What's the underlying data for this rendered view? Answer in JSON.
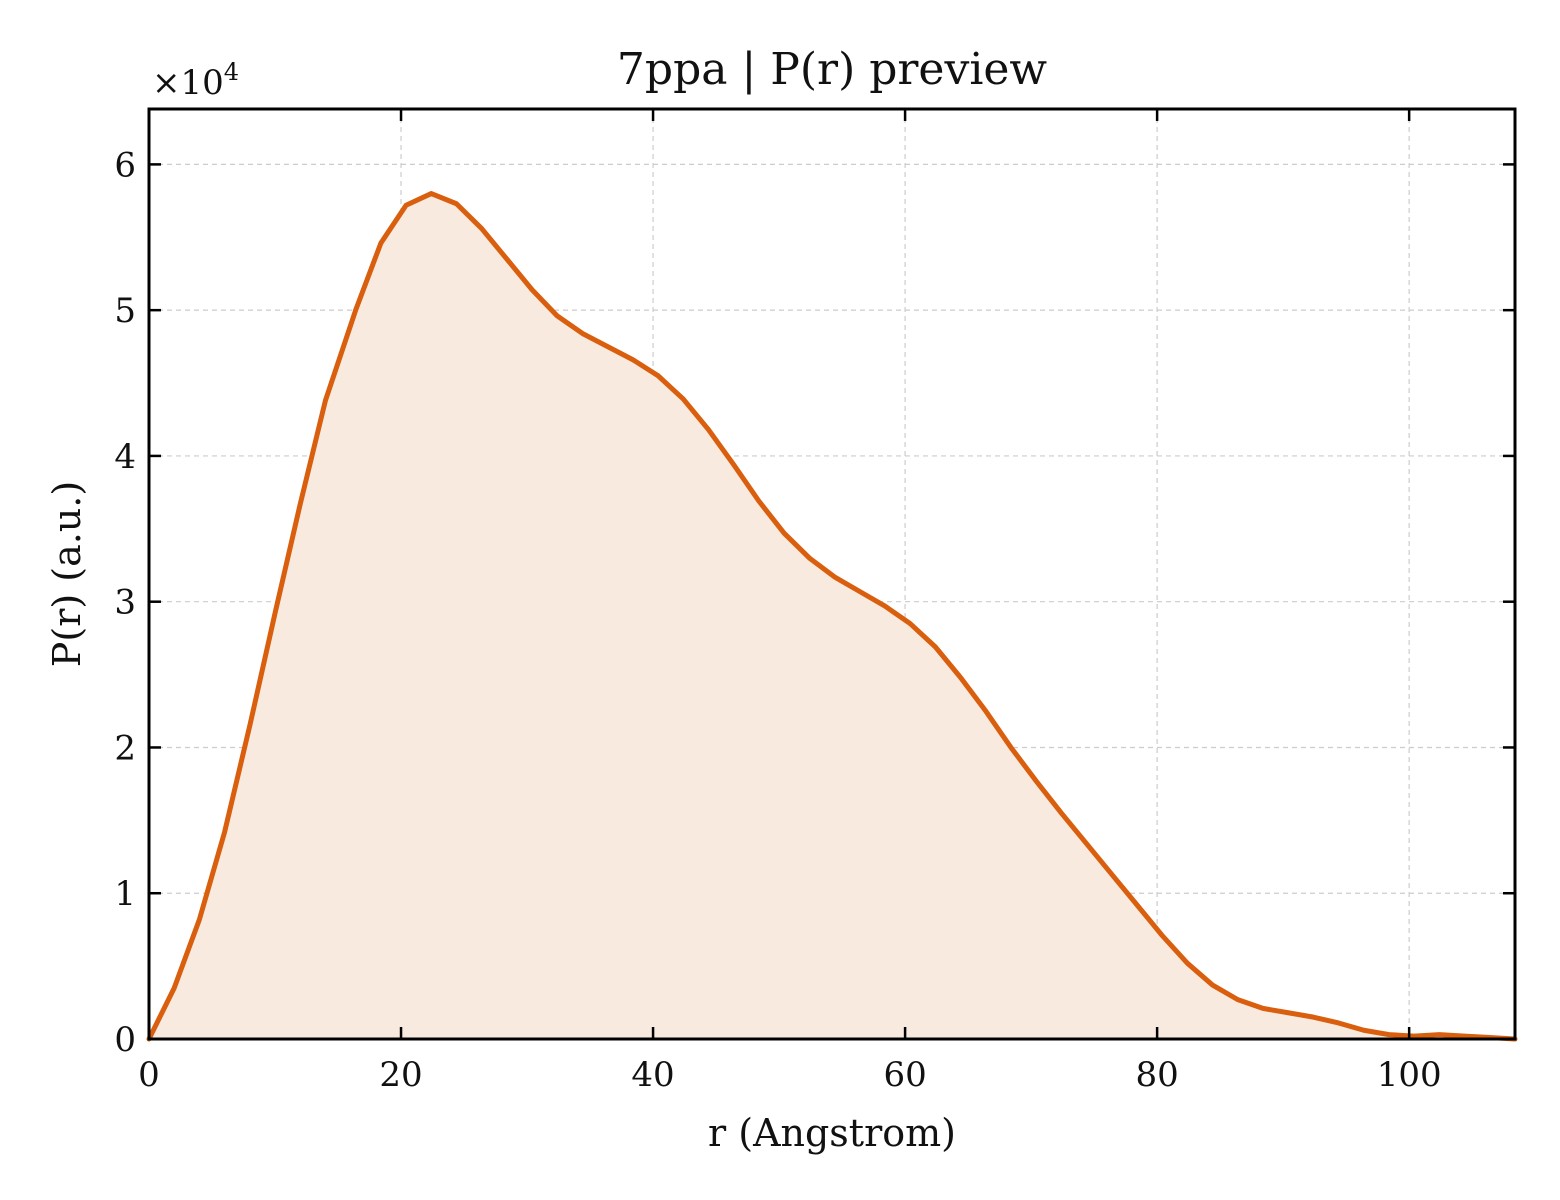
{
  "chart_data": {
    "type": "area",
    "title": "7ppa | P(r) preview",
    "xlabel": "r (Angstrom)",
    "ylabel": "P(r) (a.u.)",
    "y_multiplier_base": "×10",
    "y_multiplier_exp": "4",
    "xlim": [
      0,
      108.4
    ],
    "ylim": [
      0,
      6.38
    ],
    "y_scale": 10000,
    "x_ticks": [
      {
        "value": 0,
        "label": "0"
      },
      {
        "value": 20,
        "label": "20"
      },
      {
        "value": 40,
        "label": "40"
      },
      {
        "value": 60,
        "label": "60"
      },
      {
        "value": 80,
        "label": "80"
      },
      {
        "value": 100,
        "label": "100"
      }
    ],
    "y_ticks": [
      {
        "value": 0,
        "label": "0"
      },
      {
        "value": 1,
        "label": "1"
      },
      {
        "value": 2,
        "label": "2"
      },
      {
        "value": 3,
        "label": "3"
      },
      {
        "value": 4,
        "label": "4"
      },
      {
        "value": 5,
        "label": "5"
      },
      {
        "value": 6,
        "label": "6"
      }
    ],
    "grid": true,
    "line_color": "#d95f0e",
    "fill_color": "#f9eadf",
    "series": [
      {
        "x": [
          0,
          2,
          4,
          6,
          8,
          10,
          12,
          14,
          16.4,
          18.4,
          20.4,
          22.4,
          24.4,
          26.4,
          28.4,
          30.4,
          32.4,
          34.4,
          36.4,
          38.4,
          40.4,
          42.4,
          44.4,
          46.4,
          48.4,
          50.4,
          52.4,
          54.4,
          56.4,
          58.4,
          60.4,
          62.4,
          64.4,
          66.4,
          68.4,
          70.4,
          72.4,
          74.4,
          76.4,
          78.4,
          80.4,
          82.4,
          84.4,
          86.4,
          88.4,
          90.4,
          92.4,
          94.4,
          96.4,
          98.4,
          100.4,
          102.4,
          104.4,
          106.4,
          108.4
        ],
        "y": [
          0.0,
          0.35,
          0.82,
          1.42,
          2.15,
          2.92,
          3.67,
          4.38,
          5.0,
          5.46,
          5.72,
          5.8,
          5.73,
          5.56,
          5.35,
          5.14,
          4.96,
          4.84,
          4.75,
          4.66,
          4.55,
          4.39,
          4.18,
          3.94,
          3.69,
          3.47,
          3.3,
          3.17,
          3.07,
          2.97,
          2.85,
          2.69,
          2.48,
          2.25,
          2.0,
          1.77,
          1.55,
          1.34,
          1.13,
          0.92,
          0.71,
          0.52,
          0.37,
          0.27,
          0.21,
          0.18,
          0.15,
          0.11,
          0.06,
          0.03,
          0.02,
          0.03,
          0.02,
          0.01,
          0.0
        ]
      }
    ]
  }
}
